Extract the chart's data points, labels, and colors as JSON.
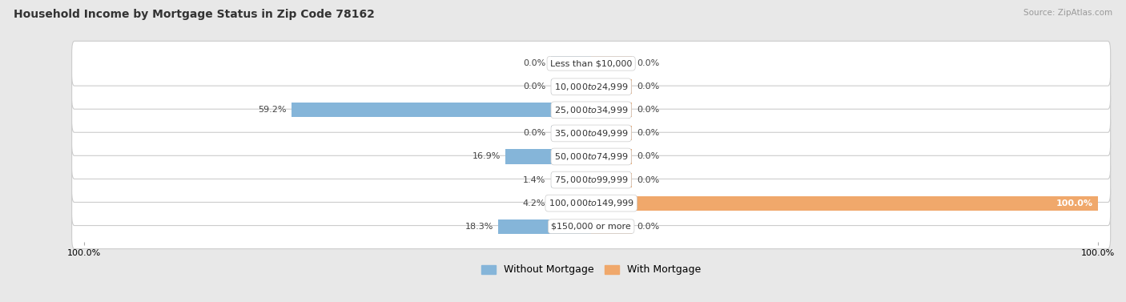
{
  "title": "Household Income by Mortgage Status in Zip Code 78162",
  "source": "Source: ZipAtlas.com",
  "categories": [
    "Less than $10,000",
    "$10,000 to $24,999",
    "$25,000 to $34,999",
    "$35,000 to $49,999",
    "$50,000 to $74,999",
    "$75,000 to $99,999",
    "$100,000 to $149,999",
    "$150,000 or more"
  ],
  "without_mortgage": [
    0.0,
    0.0,
    59.2,
    0.0,
    16.9,
    1.4,
    4.2,
    18.3
  ],
  "with_mortgage": [
    0.0,
    0.0,
    0.0,
    0.0,
    0.0,
    0.0,
    100.0,
    0.0
  ],
  "color_without": "#85b5d9",
  "color_with": "#f0a86b",
  "bg_color": "#e8e8e8",
  "row_color": "#f5f5f5",
  "title_fontsize": 10,
  "label_fontsize": 8,
  "legend_fontsize": 9,
  "axis_max": 100.0,
  "min_stub": 8.0
}
